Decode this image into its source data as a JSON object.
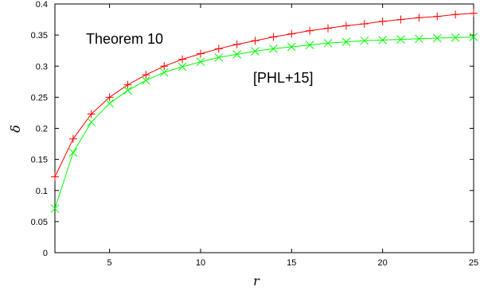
{
  "chart_data": {
    "type": "line",
    "xlabel": "r",
    "ylabel": "δ",
    "xlim": [
      2,
      25
    ],
    "ylim": [
      0,
      0.4
    ],
    "x_ticks": [
      5,
      10,
      15,
      20,
      25
    ],
    "y_ticks": [
      0,
      0.05,
      0.1,
      0.15,
      0.2,
      0.25,
      0.3,
      0.35,
      0.4
    ],
    "x_tick_labels": [
      "5",
      "10",
      "15",
      "20",
      "25"
    ],
    "y_tick_labels": [
      "0",
      "0.05",
      "0.1",
      "0.15",
      "0.2",
      "0.25",
      "0.3",
      "0.35",
      "0.4"
    ],
    "grid": false,
    "x": [
      2,
      3,
      4,
      5,
      6,
      7,
      8,
      9,
      10,
      11,
      12,
      13,
      14,
      15,
      16,
      17,
      18,
      19,
      20,
      21,
      22,
      23,
      24,
      25
    ],
    "series": [
      {
        "name": "Theorem 10",
        "color": "#ff0000",
        "marker": "plus",
        "values": [
          0.122,
          0.183,
          0.223,
          0.25,
          0.27,
          0.286,
          0.3,
          0.311,
          0.32,
          0.328,
          0.335,
          0.341,
          0.347,
          0.352,
          0.357,
          0.361,
          0.365,
          0.368,
          0.372,
          0.375,
          0.378,
          0.38,
          0.383,
          0.385
        ]
      },
      {
        "name": "[PHL+15]",
        "color": "#00ff00",
        "marker": "cross",
        "values": [
          0.071,
          0.161,
          0.21,
          0.24,
          0.261,
          0.277,
          0.29,
          0.299,
          0.307,
          0.314,
          0.319,
          0.324,
          0.328,
          0.331,
          0.334,
          0.337,
          0.339,
          0.341,
          0.342,
          0.343,
          0.344,
          0.345,
          0.346,
          0.347
        ]
      }
    ]
  }
}
